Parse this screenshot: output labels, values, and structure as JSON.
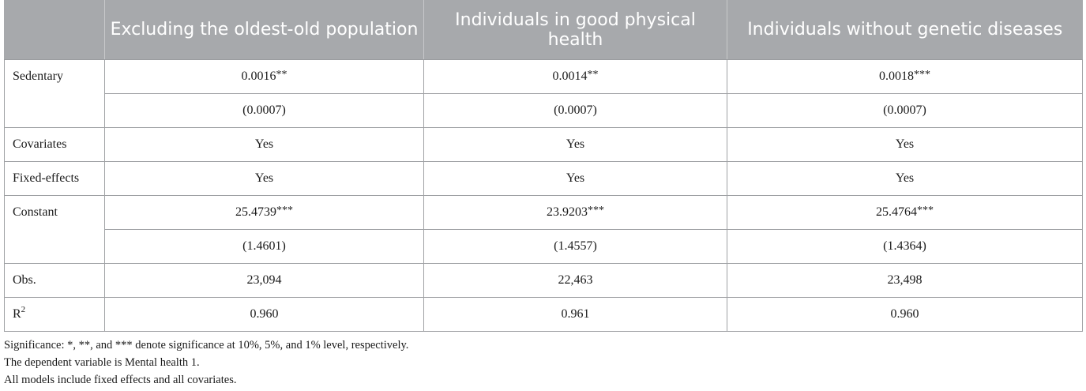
{
  "table": {
    "headers": [
      "",
      "Excluding the oldest-old population",
      "Individuals in good physical health",
      "Individuals without genetic diseases"
    ],
    "sedentary": {
      "label": "Sedentary",
      "coef": [
        "0.0016",
        "0.0014",
        "0.0018"
      ],
      "stars": [
        "**",
        "**",
        "***"
      ],
      "se": [
        "(0.0007)",
        "(0.0007)",
        "(0.0007)"
      ]
    },
    "covariates": {
      "label": "Covariates",
      "values": [
        "Yes",
        "Yes",
        "Yes"
      ]
    },
    "fixed_effects": {
      "label": "Fixed-effects",
      "values": [
        "Yes",
        "Yes",
        "Yes"
      ]
    },
    "constant": {
      "label": "Constant",
      "coef": [
        "25.4739",
        "23.9203",
        "25.4764"
      ],
      "stars": [
        "***",
        "***",
        "***"
      ],
      "se": [
        "(1.4601)",
        "(1.4557)",
        "(1.4364)"
      ]
    },
    "obs": {
      "label": "Obs.",
      "values": [
        "23,094",
        "22,463",
        "23,498"
      ]
    },
    "r2": {
      "label_base": "R",
      "label_sup": "2",
      "values": [
        "0.960",
        "0.961",
        "0.960"
      ]
    }
  },
  "notes": [
    "Significance: *, **, and *** denote significance at 10%, 5%, and 1% level, respectively.",
    "The dependent variable is Mental health 1.",
    "All models include fixed effects and all covariates."
  ]
}
